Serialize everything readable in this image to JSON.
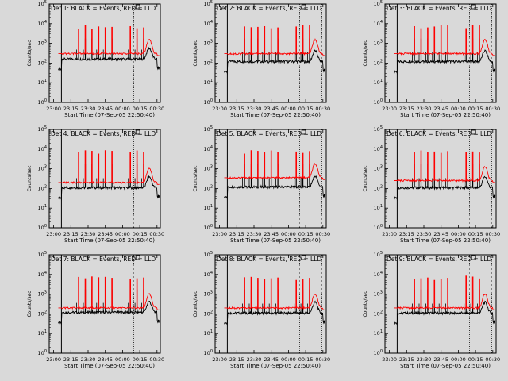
{
  "colors": {
    "background": "#d9d9d9",
    "events": "#000000",
    "lld": "#ff0000",
    "axes": "#000000"
  },
  "common": {
    "ylabel": "Counts/sec",
    "xlabel": "Start Time (07-Sep-05 22:50:40)",
    "xticks": [
      "23:00",
      "23:15",
      "23:30",
      "23:45",
      "00:00",
      "00:15",
      "00:30"
    ],
    "ytick_exponents": [
      "0",
      "1",
      "2",
      "3",
      "4",
      "5"
    ]
  },
  "chart_data": [
    {
      "type": "line",
      "title": "Det 1: BLACK = Events, RED = LLD",
      "ylog": true,
      "ylim": [
        1,
        100000
      ],
      "series": [
        {
          "name": "Events",
          "level": 160
        },
        {
          "name": "LLD",
          "level": 300,
          "peak": 7000
        }
      ]
    },
    {
      "type": "line",
      "title": "Det 2: BLACK = Events, RED = LLD",
      "ylog": true,
      "ylim": [
        1,
        100000
      ],
      "series": [
        {
          "name": "Events",
          "level": 120
        },
        {
          "name": "LLD",
          "level": 300,
          "peak": 7000
        }
      ]
    },
    {
      "type": "line",
      "title": "Det 3: BLACK = Events, RED = LLD",
      "ylog": true,
      "ylim": [
        1,
        100000
      ],
      "series": [
        {
          "name": "Events",
          "level": 120
        },
        {
          "name": "LLD",
          "level": 300,
          "peak": 7000
        }
      ]
    },
    {
      "type": "line",
      "title": "Det 4: BLACK = Events, RED = LLD",
      "ylog": true,
      "ylim": [
        1,
        100000
      ],
      "series": [
        {
          "name": "Events",
          "level": 110
        },
        {
          "name": "LLD",
          "level": 200,
          "peak": 7000
        }
      ]
    },
    {
      "type": "line",
      "title": "Det 5: BLACK = Events, RED = LLD",
      "ylog": true,
      "ylim": [
        1,
        100000
      ],
      "series": [
        {
          "name": "Events",
          "level": 120
        },
        {
          "name": "LLD",
          "level": 350,
          "peak": 7000
        }
      ]
    },
    {
      "type": "line",
      "title": "Det 6: BLACK = Events, RED = LLD",
      "ylog": true,
      "ylim": [
        1,
        100000
      ],
      "series": [
        {
          "name": "Events",
          "level": 110
        },
        {
          "name": "LLD",
          "level": 250,
          "peak": 7000
        }
      ]
    },
    {
      "type": "line",
      "title": "Det 7: BLACK = Events, RED = LLD",
      "ylog": true,
      "ylim": [
        1,
        100000
      ],
      "series": [
        {
          "name": "Events",
          "level": 120
        },
        {
          "name": "LLD",
          "level": 200,
          "peak": 7000
        }
      ]
    },
    {
      "type": "line",
      "title": "Det 8: BLACK = Events, RED = LLD",
      "ylog": true,
      "ylim": [
        1,
        100000
      ],
      "series": [
        {
          "name": "Events",
          "level": 110
        },
        {
          "name": "LLD",
          "level": 200,
          "peak": 7000
        }
      ]
    },
    {
      "type": "line",
      "title": "Det 9: BLACK = Events, RED = LLD",
      "ylog": true,
      "ylim": [
        1,
        100000
      ],
      "series": [
        {
          "name": "Events",
          "level": 110
        },
        {
          "name": "LLD",
          "level": 200,
          "peak": 7000
        }
      ]
    }
  ]
}
